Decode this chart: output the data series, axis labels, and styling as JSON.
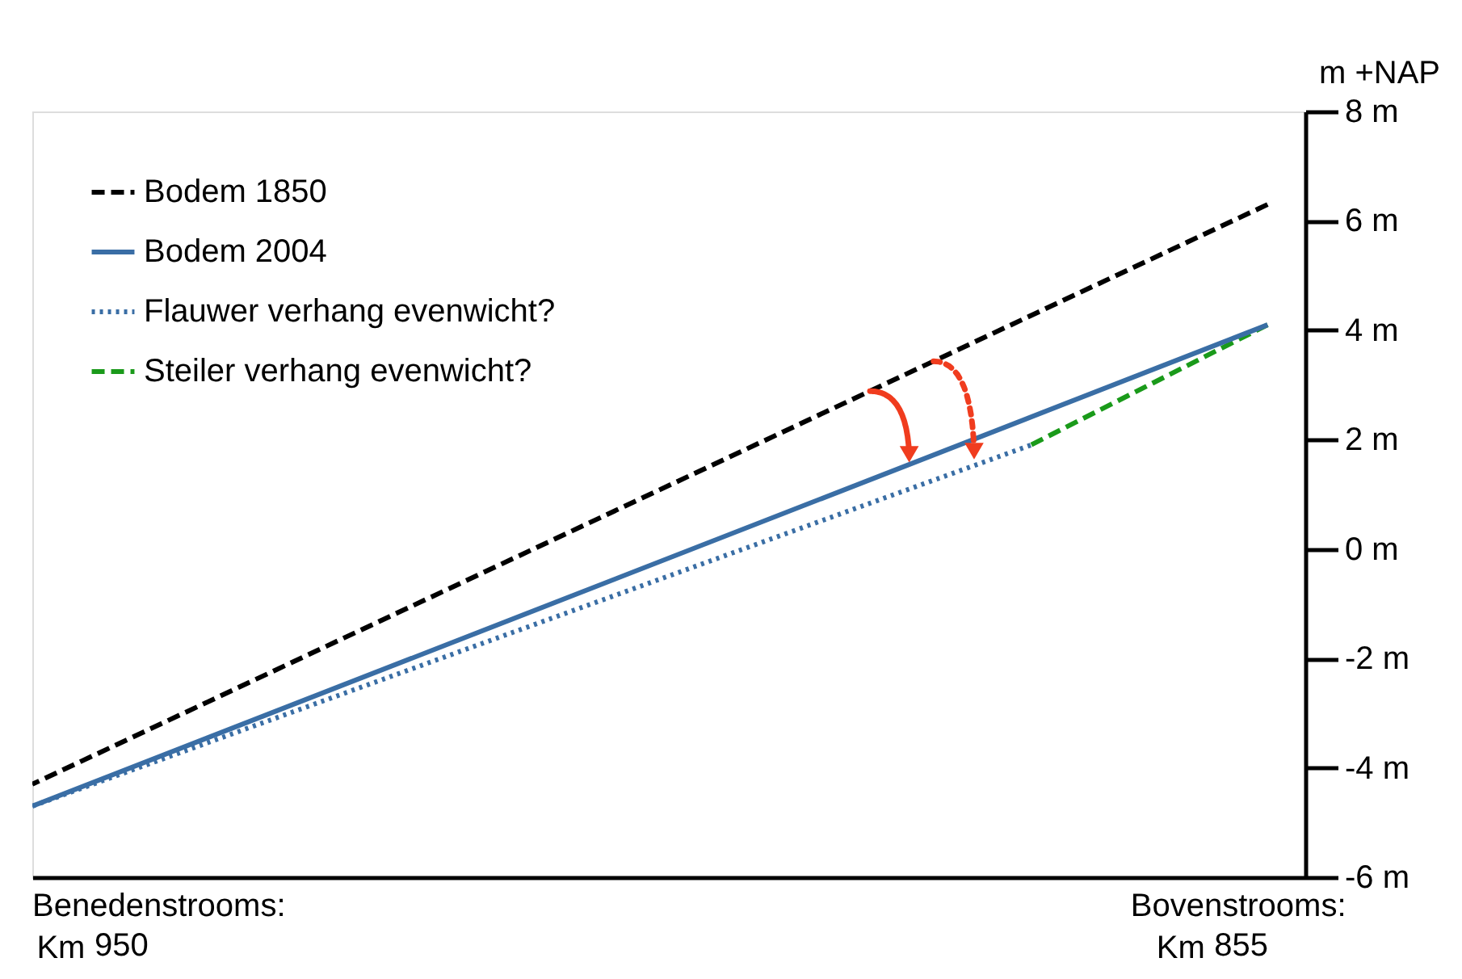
{
  "chart_data": {
    "type": "line",
    "xlabel": "Km",
    "ylabel": "m +NAP",
    "xlim": [
      957.5,
      849.5
    ],
    "xticks": [
      950,
      855
    ],
    "annotations": [
      "Benedenstrooms:",
      "Bovenstrooms:"
    ],
    "ylim": [
      -6,
      8
    ],
    "yticks": [
      {
        "value": 8,
        "label": "8 m"
      },
      {
        "value": 6,
        "label": "6 m"
      },
      {
        "value": 4,
        "label": "4 m"
      },
      {
        "value": 2,
        "label": "2 m"
      },
      {
        "value": 0,
        "label": "0 m"
      },
      {
        "value": -2,
        "label": "-2 m"
      },
      {
        "value": -4,
        "label": "-4 m"
      },
      {
        "value": -6,
        "label": "-6 m"
      }
    ],
    "series": [
      {
        "name": "Bodem 1850",
        "color": "#000000",
        "line_style": "dashed",
        "x": [
          957.5,
          852.7
        ],
        "values": [
          -4.3,
          6.3
        ]
      },
      {
        "name": "Bodem 2004",
        "color": "#3a6ea5",
        "line_style": "solid",
        "x": [
          957.5,
          852.7
        ],
        "values": [
          -4.7,
          4.1
        ]
      },
      {
        "name": "Flauwer verhang evenwicht?",
        "color": "#3a6ea5",
        "line_style": "dotted",
        "x": [
          957.5,
          872.8
        ],
        "values": [
          -4.7,
          1.9
        ]
      },
      {
        "name": "Steiler verhang evenwicht?",
        "color": "#1a9a1a",
        "line_style": "dashed",
        "x": [
          872.8,
          852.7
        ],
        "values": [
          1.9,
          4.1
        ]
      }
    ],
    "grid": false,
    "legend": "top left"
  }
}
